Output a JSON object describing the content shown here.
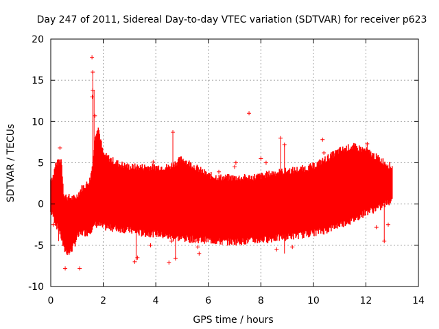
{
  "chart_data": {
    "type": "scatter",
    "title": "Day 247 of 2011, Sidereal Day-to-day VTEC variation (SDTVAR) for receiver p623",
    "xlabel": "GPS time / hours",
    "ylabel": "SDTVAR / TECUs",
    "xlim": [
      0,
      14
    ],
    "ylim": [
      -10,
      20
    ],
    "x_ticks": [
      0,
      2,
      4,
      6,
      8,
      10,
      12,
      14
    ],
    "y_ticks": [
      -10,
      -5,
      0,
      5,
      10,
      15,
      20
    ],
    "x_tick_labels": [
      "0",
      "2",
      "4",
      "6",
      "8",
      "10",
      "12",
      "14"
    ],
    "y_tick_labels": [
      "-10",
      "-5",
      "0",
      "5",
      "10",
      "15",
      "20"
    ],
    "grid": true,
    "series_color": "#ff0000",
    "marker": "plus",
    "envelope": {
      "x": [
        0.0,
        0.1,
        0.2,
        0.3,
        0.4,
        0.5,
        0.7,
        0.9,
        1.0,
        1.2,
        1.4,
        1.5,
        1.6,
        1.7,
        1.8,
        2.0,
        2.5,
        3.0,
        3.5,
        4.0,
        4.5,
        5.0,
        5.5,
        6.0,
        6.5,
        7.0,
        7.5,
        8.0,
        8.5,
        9.0,
        9.5,
        10.0,
        10.5,
        11.0,
        11.5,
        12.0,
        12.5,
        13.0
      ],
      "upper": [
        3.0,
        3.5,
        5.0,
        5.0,
        5.5,
        1.0,
        0.8,
        0.7,
        1.0,
        2.0,
        2.5,
        3.0,
        5.0,
        8.5,
        9.5,
        6.0,
        5.0,
        4.5,
        4.5,
        4.5,
        4.5,
        5.5,
        4.5,
        3.5,
        3.2,
        3.2,
        3.2,
        3.4,
        3.8,
        4.0,
        4.2,
        4.6,
        5.5,
        6.5,
        7.0,
        6.5,
        5.5,
        4.5
      ],
      "lower": [
        -1.0,
        -1.5,
        -2.5,
        -3.0,
        -4.0,
        -5.5,
        -6.0,
        -5.0,
        -4.0,
        -3.5,
        -3.5,
        -3.2,
        -3.0,
        -2.5,
        -2.5,
        -2.8,
        -3.0,
        -3.2,
        -3.6,
        -3.6,
        -4.0,
        -4.2,
        -4.3,
        -4.4,
        -4.6,
        -4.6,
        -4.5,
        -4.4,
        -4.2,
        -4.0,
        -3.8,
        -3.5,
        -3.2,
        -2.5,
        -2.0,
        -1.0,
        -0.5,
        0.5
      ]
    },
    "outliers": [
      {
        "x": 0.1,
        "y": -2.5
      },
      {
        "x": 0.35,
        "y": 6.8
      },
      {
        "x": 0.55,
        "y": -7.8
      },
      {
        "x": 1.1,
        "y": -7.8
      },
      {
        "x": 1.57,
        "y": 17.8
      },
      {
        "x": 1.6,
        "y": 16.0
      },
      {
        "x": 1.6,
        "y": 13.8
      },
      {
        "x": 1.58,
        "y": 13.0
      },
      {
        "x": 1.68,
        "y": 10.7
      },
      {
        "x": 3.2,
        "y": -7.0
      },
      {
        "x": 3.3,
        "y": -6.5
      },
      {
        "x": 3.8,
        "y": -5.0
      },
      {
        "x": 3.9,
        "y": 5.1
      },
      {
        "x": 4.5,
        "y": -7.1
      },
      {
        "x": 4.6,
        "y": -4.5
      },
      {
        "x": 4.65,
        "y": 8.7
      },
      {
        "x": 4.75,
        "y": -6.6
      },
      {
        "x": 5.5,
        "y": -4.5
      },
      {
        "x": 5.6,
        "y": -5.2
      },
      {
        "x": 5.65,
        "y": -6.0
      },
      {
        "x": 6.4,
        "y": 3.9
      },
      {
        "x": 7.0,
        "y": 4.5
      },
      {
        "x": 7.05,
        "y": 5.0
      },
      {
        "x": 7.55,
        "y": 11.0
      },
      {
        "x": 8.0,
        "y": 5.5
      },
      {
        "x": 8.2,
        "y": 5.0
      },
      {
        "x": 8.6,
        "y": -5.5
      },
      {
        "x": 8.75,
        "y": 8.0
      },
      {
        "x": 8.9,
        "y": 7.2
      },
      {
        "x": 9.2,
        "y": -5.2
      },
      {
        "x": 10.35,
        "y": 7.8
      },
      {
        "x": 10.4,
        "y": 6.2
      },
      {
        "x": 12.05,
        "y": 7.3
      },
      {
        "x": 12.4,
        "y": -2.8
      },
      {
        "x": 12.7,
        "y": -4.5
      },
      {
        "x": 12.85,
        "y": -2.5
      }
    ],
    "spikes": [
      {
        "x": 0.3,
        "y1": -4.5,
        "y2": 5.0
      },
      {
        "x": 1.6,
        "y1": 3.0,
        "y2": 16.0
      },
      {
        "x": 1.65,
        "y1": 5.0,
        "y2": 13.8
      },
      {
        "x": 3.25,
        "y1": -6.8,
        "y2": 4.0
      },
      {
        "x": 4.65,
        "y1": -4.0,
        "y2": 8.7
      },
      {
        "x": 4.75,
        "y1": -6.6,
        "y2": 4.5
      },
      {
        "x": 8.75,
        "y1": 3.0,
        "y2": 8.0
      },
      {
        "x": 8.9,
        "y1": -6.0,
        "y2": 7.2
      },
      {
        "x": 12.05,
        "y1": 0.0,
        "y2": 7.3
      },
      {
        "x": 12.7,
        "y1": -4.5,
        "y2": 0.0
      }
    ]
  }
}
